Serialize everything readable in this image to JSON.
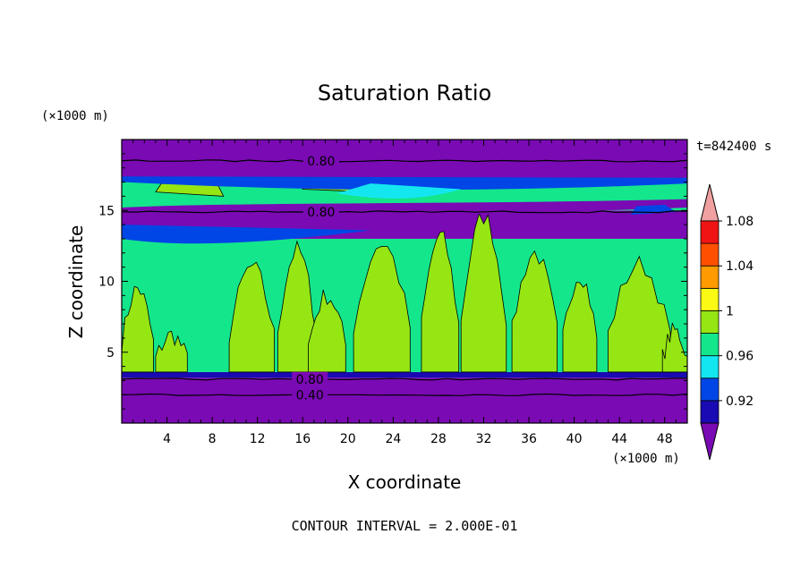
{
  "chart_data": {
    "type": "heatmap",
    "title": "Saturation Ratio",
    "xlabel": "X coordinate",
    "ylabel": "Z coordinate",
    "x_unit": "(×1000 m)",
    "y_unit": "(×1000 m)",
    "time_label": "t=842400 s",
    "footer": "CONTOUR INTERVAL = 2.000E-01",
    "xlim": [
      0,
      50
    ],
    "ylim": [
      0,
      20
    ],
    "x_ticks": [
      "4",
      "8",
      "12",
      "16",
      "20",
      "24",
      "28",
      "32",
      "36",
      "40",
      "44",
      "48"
    ],
    "y_ticks": [
      "5",
      "10",
      "15"
    ],
    "colorbar": {
      "labels": [
        "0.92",
        "0.96",
        "1",
        "1.04",
        "1.08"
      ],
      "levels": [
        {
          "color": "#7a0ab4"
        },
        {
          "color": "#1a0ab4"
        },
        {
          "color": "#0046e6"
        },
        {
          "color": "#14e6f0"
        },
        {
          "color": "#14e68c"
        },
        {
          "color": "#96e614"
        },
        {
          "color": "#fafa14"
        },
        {
          "color": "#ff9a00"
        },
        {
          "color": "#ff5000"
        },
        {
          "color": "#f01414"
        },
        {
          "color": "#f0a0a0"
        }
      ]
    },
    "contour_labels": [
      {
        "text": "0.80",
        "x": 17,
        "z": 18.5
      },
      {
        "text": "0.80",
        "x": 17,
        "z": 14.9
      },
      {
        "text": "0.80",
        "x": 16,
        "z": 3.1
      },
      {
        "text": "0.40",
        "x": 16,
        "z": 2.0
      }
    ],
    "bands": [
      {
        "z0": 0,
        "z1": 3.2,
        "color": "#7a0ab4"
      },
      {
        "z0": 3.2,
        "z1": 3.6,
        "color": "#1a0ab4"
      },
      {
        "z0": 3.6,
        "z1": 13.0,
        "color": "#14e68c"
      },
      {
        "z0": 13.0,
        "z1": 15.0,
        "color": "#7a0ab4"
      },
      {
        "z0": 15.0,
        "z1": 17.2,
        "color": "#14e68c"
      },
      {
        "z0": 17.2,
        "z1": 20,
        "color": "#7a0ab4"
      }
    ]
  }
}
